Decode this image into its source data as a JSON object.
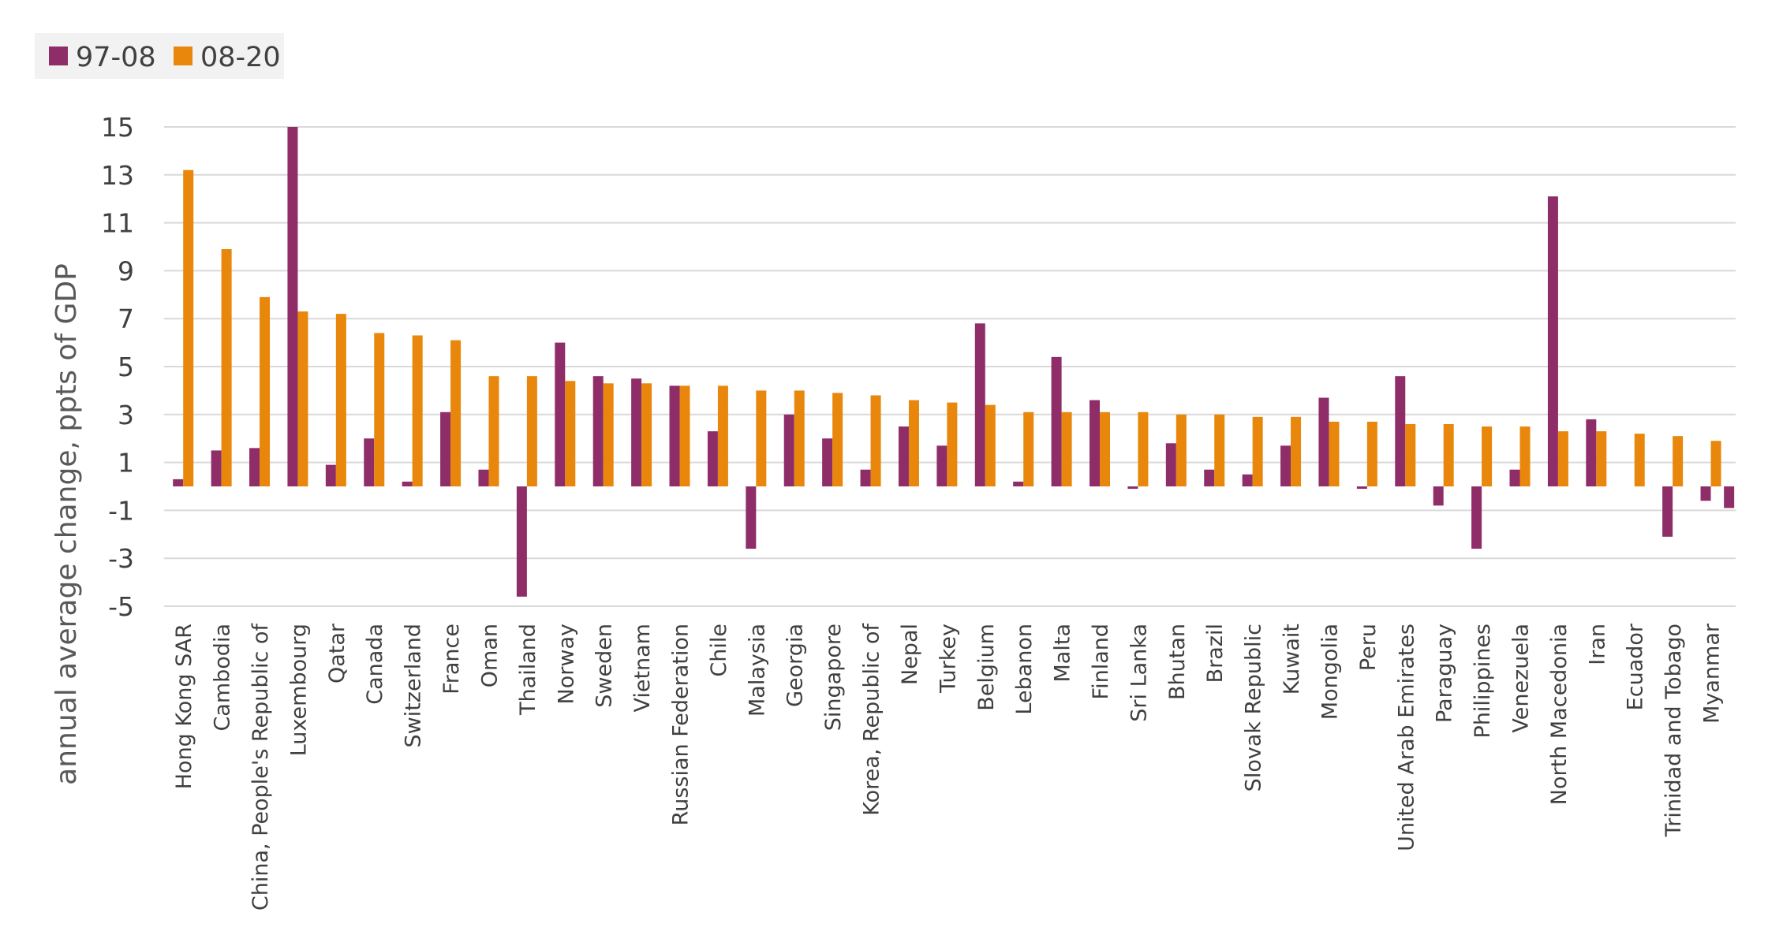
{
  "chart_data": {
    "type": "bar",
    "title": "",
    "xlabel": "",
    "ylabel": "annual average change, ppts of GDP",
    "ylim": [
      -5,
      15
    ],
    "yticks": [
      15,
      13,
      11,
      9,
      7,
      5,
      3,
      1,
      -1,
      -3,
      -5
    ],
    "grid": true,
    "legend_position": "top-left",
    "categories": [
      "Hong Kong SAR",
      "Cambodia",
      "China, People's Republic of",
      "Luxembourg",
      "Qatar",
      "Canada",
      "Switzerland",
      "France",
      "Oman",
      "Thailand",
      "Norway",
      "Sweden",
      "Vietnam",
      "Russian Federation",
      "Chile",
      "Malaysia",
      "Georgia",
      "Singapore",
      "Korea, Republic of",
      "Nepal",
      "Turkey",
      "Belgium",
      "Lebanon",
      "Malta",
      "Finland",
      "Sri Lanka",
      "Bhutan",
      "Brazil",
      "Slovak Republic",
      "Kuwait",
      "Mongolia",
      "Peru",
      "United Arab Emirates",
      "Paraguay",
      "Philippines",
      "Venezuela",
      "North Macedonia",
      "Iran",
      "Ecuador",
      "Trinidad and Tobago",
      "Myanmar"
    ],
    "series": [
      {
        "name": "97-08",
        "color": "#8e2d68",
        "values": [
          0.3,
          1.5,
          1.6,
          15.0,
          0.9,
          2.0,
          0.2,
          3.1,
          0.7,
          -4.6,
          6.0,
          4.6,
          4.5,
          4.2,
          2.3,
          -2.6,
          3.0,
          2.0,
          0.7,
          2.5,
          1.7,
          6.8,
          0.2,
          5.4,
          3.6,
          -0.1,
          1.8,
          0.7,
          0.5,
          1.7,
          3.7,
          -0.1,
          4.6,
          -0.8,
          -2.6,
          0.7,
          12.1,
          2.8,
          0.0,
          -2.1,
          -0.6
        ]
      },
      {
        "name": "08-20",
        "color": "#e8870b",
        "values": [
          13.2,
          9.9,
          7.9,
          7.3,
          7.2,
          6.4,
          6.3,
          6.1,
          4.6,
          4.6,
          4.4,
          4.3,
          4.3,
          4.2,
          4.2,
          4.0,
          4.0,
          3.9,
          3.8,
          3.6,
          3.5,
          3.4,
          3.1,
          3.1,
          3.1,
          3.1,
          3.0,
          3.0,
          2.9,
          2.9,
          2.7,
          2.7,
          2.6,
          2.6,
          2.5,
          2.5,
          2.3,
          2.3,
          2.2,
          2.1,
          1.9
        ]
      }
    ],
    "last_category_extra_97_08": -0.9
  }
}
